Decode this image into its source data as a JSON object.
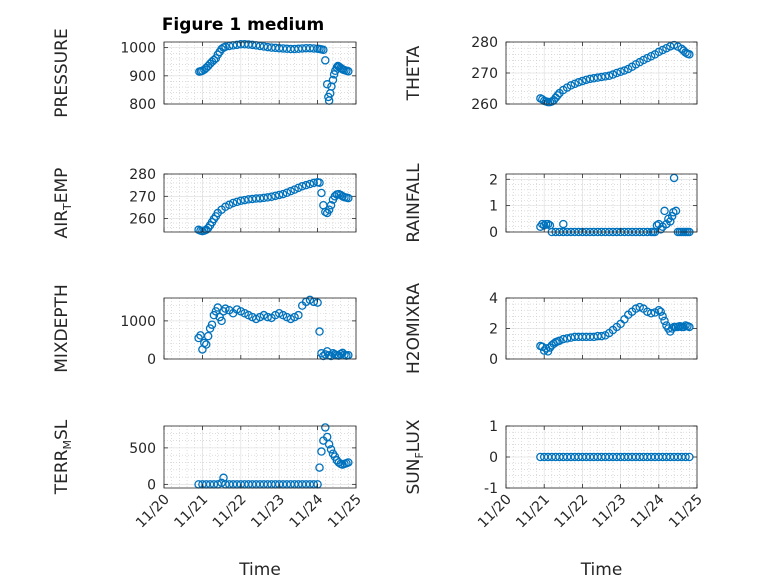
{
  "figure": {
    "title": "Figure 1 medium",
    "marker_color": "#0072BD"
  },
  "chart_data": [
    {
      "type": "scatter",
      "ylabel": "PRESSURE",
      "ylim": [
        800,
        1020
      ],
      "yticks": [
        800,
        900,
        1000
      ],
      "ytick_labels": [
        "800",
        "900",
        "1000"
      ],
      "xlim": [
        "11/20",
        "11/25"
      ],
      "xticks": [
        "11/20",
        "11/21",
        "11/22",
        "11/23",
        "11/24",
        "11/25"
      ],
      "xlabel": "",
      "grid": "on",
      "x": [
        0.92,
        0.96,
        1.0,
        1.05,
        1.1,
        1.15,
        1.2,
        1.25,
        1.3,
        1.35,
        1.4,
        1.45,
        1.5,
        1.55,
        1.6,
        1.7,
        1.8,
        1.9,
        2.0,
        2.1,
        2.2,
        2.3,
        2.4,
        2.5,
        2.6,
        2.7,
        2.8,
        2.9,
        3.0,
        3.1,
        3.2,
        3.3,
        3.4,
        3.5,
        3.6,
        3.7,
        3.8,
        3.9,
        4.0,
        4.05,
        4.1,
        4.15,
        4.2,
        4.25,
        4.28,
        4.3,
        4.33,
        4.36,
        4.4,
        4.43,
        4.46,
        4.5,
        4.53,
        4.56,
        4.6,
        4.63,
        4.66,
        4.7,
        4.75,
        4.8
      ],
      "y": [
        915,
        916,
        918,
        922,
        928,
        935,
        943,
        950,
        956,
        962,
        975,
        985,
        995,
        1000,
        1003,
        1006,
        1008,
        1010,
        1012,
        1012,
        1011,
        1010,
        1008,
        1006,
        1004,
        1002,
        1000,
        999,
        998,
        997,
        996,
        995,
        995,
        996,
        997,
        998,
        998,
        997,
        996,
        995,
        994,
        992,
        955,
        870,
        825,
        812,
        838,
        862,
        885,
        905,
        918,
        930,
        935,
        932,
        928,
        925,
        922,
        920,
        918,
        916
      ]
    },
    {
      "type": "scatter",
      "ylabel": "THETA",
      "ylim": [
        260,
        280
      ],
      "yticks": [
        260,
        270,
        280
      ],
      "ytick_labels": [
        "260",
        "270",
        "280"
      ],
      "xlim": [
        "11/20",
        "11/25"
      ],
      "xticks": [
        "11/20",
        "11/21",
        "11/22",
        "11/23",
        "11/24",
        "11/25"
      ],
      "xlabel": "",
      "grid": "on",
      "x": [
        0.9,
        0.95,
        1.0,
        1.05,
        1.1,
        1.15,
        1.2,
        1.25,
        1.3,
        1.35,
        1.4,
        1.5,
        1.6,
        1.7,
        1.8,
        1.9,
        2.0,
        2.1,
        2.2,
        2.3,
        2.4,
        2.5,
        2.6,
        2.7,
        2.8,
        2.9,
        3.0,
        3.1,
        3.2,
        3.3,
        3.4,
        3.5,
        3.6,
        3.7,
        3.8,
        3.9,
        4.0,
        4.1,
        4.2,
        4.3,
        4.4,
        4.5,
        4.6,
        4.65,
        4.7,
        4.75,
        4.8
      ],
      "y": [
        261.8,
        261.5,
        261.0,
        260.8,
        260.6,
        260.6,
        260.8,
        261.2,
        262.0,
        262.8,
        263.5,
        264.5,
        265.3,
        266.0,
        266.5,
        267.0,
        267.4,
        267.8,
        268.1,
        268.3,
        268.5,
        268.7,
        268.9,
        269.1,
        269.5,
        270.0,
        270.4,
        270.8,
        271.3,
        272.0,
        272.8,
        273.5,
        274.2,
        274.8,
        275.4,
        276.0,
        276.8,
        277.4,
        278.0,
        278.6,
        279.0,
        278.5,
        277.8,
        277.2,
        276.6,
        276.2,
        276.0
      ]
    },
    {
      "type": "scatter",
      "ylabel": "AIR_TEMP",
      "ylabel_main": "AIR",
      "ylabel_sub": "T",
      "ylabel_tail": "EMP",
      "ylim": [
        254,
        280
      ],
      "yticks": [
        260,
        270,
        280
      ],
      "ytick_labels": [
        "260",
        "270",
        "280"
      ],
      "xlim": [
        "11/20",
        "11/25"
      ],
      "xticks": [
        "11/20",
        "11/21",
        "11/22",
        "11/23",
        "11/24",
        "11/25"
      ],
      "xlabel": "",
      "grid": "on",
      "x": [
        0.9,
        0.95,
        1.0,
        1.05,
        1.1,
        1.15,
        1.2,
        1.25,
        1.3,
        1.35,
        1.4,
        1.5,
        1.6,
        1.7,
        1.8,
        1.9,
        2.0,
        2.1,
        2.2,
        2.3,
        2.4,
        2.5,
        2.6,
        2.7,
        2.8,
        2.9,
        3.0,
        3.1,
        3.2,
        3.3,
        3.4,
        3.5,
        3.6,
        3.7,
        3.8,
        3.9,
        4.0,
        4.05,
        4.1,
        4.15,
        4.2,
        4.25,
        4.3,
        4.35,
        4.4,
        4.45,
        4.5,
        4.55,
        4.6,
        4.65,
        4.7,
        4.75,
        4.8
      ],
      "y": [
        255.0,
        254.6,
        254.4,
        254.6,
        255.0,
        255.8,
        257.0,
        258.4,
        259.8,
        261.0,
        262.5,
        264.0,
        265.3,
        266.2,
        267.0,
        267.5,
        268.0,
        268.3,
        268.6,
        268.8,
        269.0,
        269.1,
        269.3,
        269.5,
        269.8,
        270.2,
        270.6,
        271.0,
        271.6,
        272.3,
        273.0,
        273.8,
        274.5,
        275.0,
        275.5,
        276.0,
        276.3,
        276.1,
        271.5,
        266.0,
        263.0,
        262.5,
        264.0,
        266.0,
        268.5,
        270.0,
        270.8,
        271.0,
        270.6,
        270.0,
        269.6,
        269.4,
        269.2
      ]
    },
    {
      "type": "scatter",
      "ylabel": "RAINFALL",
      "ylim": [
        0,
        2.2
      ],
      "yticks": [
        0,
        1,
        2
      ],
      "ytick_labels": [
        "0",
        "1",
        "2"
      ],
      "xlim": [
        "11/20",
        "11/25"
      ],
      "xticks": [
        "11/20",
        "11/21",
        "11/22",
        "11/23",
        "11/24",
        "11/25"
      ],
      "xlabel": "",
      "grid": "on",
      "x": [
        0.9,
        0.95,
        1.0,
        1.05,
        1.1,
        1.15,
        1.2,
        1.3,
        1.4,
        1.5,
        1.5,
        1.6,
        1.7,
        1.8,
        1.9,
        2.0,
        2.1,
        2.2,
        2.3,
        2.4,
        2.5,
        2.6,
        2.7,
        2.8,
        2.9,
        3.0,
        3.1,
        3.2,
        3.3,
        3.4,
        3.5,
        3.6,
        3.7,
        3.8,
        3.85,
        3.9,
        3.95,
        4.0,
        4.05,
        4.1,
        4.15,
        4.2,
        4.25,
        4.3,
        4.35,
        4.38,
        4.4,
        4.45,
        4.5,
        4.55,
        4.6,
        4.65,
        4.7,
        4.75,
        4.8
      ],
      "y": [
        0.2,
        0.3,
        0.25,
        0.3,
        0.3,
        0.25,
        0,
        0,
        0,
        0.3,
        0,
        0,
        0,
        0,
        0,
        0,
        0,
        0,
        0,
        0,
        0,
        0,
        0,
        0,
        0,
        0,
        0,
        0,
        0,
        0,
        0,
        0,
        0,
        0,
        0,
        0,
        0.25,
        0.3,
        0.1,
        0.2,
        0.8,
        0.3,
        0.5,
        0.4,
        0.6,
        0.75,
        2.05,
        0.8,
        0,
        0,
        0,
        0,
        0,
        0,
        0
      ]
    },
    {
      "type": "scatter",
      "ylabel": "MIXDEPTH",
      "ylim": [
        0,
        1600
      ],
      "yticks": [
        0,
        1000
      ],
      "ytick_labels": [
        "0",
        "1000"
      ],
      "xlim": [
        "11/20",
        "11/25"
      ],
      "xticks": [
        "11/20",
        "11/21",
        "11/22",
        "11/23",
        "11/24",
        "11/25"
      ],
      "xlabel": "",
      "grid": "on",
      "x": [
        0.9,
        0.95,
        1.0,
        1.05,
        1.1,
        1.15,
        1.2,
        1.25,
        1.3,
        1.35,
        1.4,
        1.45,
        1.5,
        1.55,
        1.6,
        1.7,
        1.8,
        1.9,
        2.0,
        2.1,
        2.2,
        2.3,
        2.4,
        2.5,
        2.6,
        2.7,
        2.8,
        2.9,
        3.0,
        3.1,
        3.2,
        3.3,
        3.4,
        3.5,
        3.6,
        3.7,
        3.8,
        3.9,
        4.0,
        4.05,
        4.1,
        4.15,
        4.2,
        4.25,
        4.3,
        4.35,
        4.4,
        4.45,
        4.5,
        4.55,
        4.6,
        4.65,
        4.7,
        4.75,
        4.8
      ],
      "y": [
        550,
        620,
        250,
        420,
        380,
        600,
        800,
        900,
        1150,
        1250,
        1350,
        1100,
        1000,
        1250,
        1320,
        1280,
        1200,
        1300,
        1250,
        1200,
        1150,
        1100,
        1050,
        1100,
        1150,
        1100,
        1080,
        1150,
        1200,
        1150,
        1100,
        1050,
        1100,
        1150,
        1400,
        1500,
        1550,
        1500,
        1480,
        720,
        150,
        80,
        120,
        200,
        100,
        80,
        150,
        120,
        100,
        90,
        130,
        160,
        110,
        90,
        100
      ]
    },
    {
      "type": "scatter",
      "ylabel": "H2OMIXRA",
      "ylim": [
        0,
        4
      ],
      "yticks": [
        0,
        2,
        4
      ],
      "ytick_labels": [
        "0",
        "2",
        "4"
      ],
      "xlim": [
        "11/20",
        "11/25"
      ],
      "xticks": [
        "11/20",
        "11/21",
        "11/22",
        "11/23",
        "11/24",
        "11/25"
      ],
      "xlabel": "",
      "grid": "on",
      "x": [
        0.9,
        0.95,
        1.0,
        1.05,
        1.1,
        1.15,
        1.2,
        1.25,
        1.3,
        1.35,
        1.4,
        1.5,
        1.6,
        1.7,
        1.8,
        1.9,
        2.0,
        2.1,
        2.2,
        2.3,
        2.4,
        2.5,
        2.6,
        2.7,
        2.8,
        2.9,
        3.0,
        3.1,
        3.2,
        3.3,
        3.4,
        3.5,
        3.6,
        3.7,
        3.8,
        3.9,
        4.0,
        4.05,
        4.1,
        4.15,
        4.2,
        4.25,
        4.3,
        4.35,
        4.4,
        4.45,
        4.5,
        4.55,
        4.6,
        4.65,
        4.7,
        4.75,
        4.8
      ],
      "y": [
        0.85,
        0.8,
        0.55,
        0.7,
        0.5,
        0.75,
        0.9,
        1.0,
        1.1,
        1.15,
        1.2,
        1.3,
        1.35,
        1.4,
        1.45,
        1.45,
        1.45,
        1.45,
        1.45,
        1.45,
        1.5,
        1.5,
        1.55,
        1.7,
        1.9,
        2.1,
        2.3,
        2.6,
        2.9,
        3.1,
        3.3,
        3.4,
        3.3,
        3.1,
        3.0,
        3.05,
        3.2,
        3.1,
        2.8,
        2.5,
        2.2,
        2.0,
        1.8,
        2.0,
        2.1,
        2.1,
        2.1,
        2.15,
        2.1,
        2.1,
        2.2,
        2.15,
        2.1
      ]
    },
    {
      "type": "scatter",
      "ylabel": "TERR_MSL",
      "ylabel_main": "TERR",
      "ylabel_sub": "M",
      "ylabel_tail": "SL",
      "ylim": [
        -50,
        800
      ],
      "yticks": [
        0,
        500
      ],
      "ytick_labels": [
        "0",
        "500"
      ],
      "xlim": [
        "11/20",
        "11/25"
      ],
      "xticks": [
        "11/20",
        "11/21",
        "11/22",
        "11/23",
        "11/24",
        "11/25"
      ],
      "xticklabels_shown": true,
      "xlabel": "Time",
      "grid": "on",
      "x": [
        0.9,
        1.0,
        1.1,
        1.2,
        1.3,
        1.4,
        1.5,
        1.55,
        1.6,
        1.7,
        1.8,
        1.9,
        2.0,
        2.1,
        2.2,
        2.3,
        2.4,
        2.5,
        2.6,
        2.7,
        2.8,
        2.9,
        3.0,
        3.1,
        3.2,
        3.3,
        3.4,
        3.5,
        3.6,
        3.7,
        3.8,
        3.9,
        4.0,
        4.05,
        4.1,
        4.15,
        4.2,
        4.25,
        4.3,
        4.35,
        4.4,
        4.45,
        4.5,
        4.55,
        4.6,
        4.65,
        4.7,
        4.75,
        4.8
      ],
      "y": [
        0,
        0,
        0,
        0,
        0,
        0,
        20,
        90,
        0,
        0,
        0,
        0,
        0,
        0,
        0,
        0,
        0,
        0,
        0,
        0,
        0,
        0,
        0,
        0,
        0,
        0,
        0,
        0,
        0,
        0,
        0,
        0,
        0,
        230,
        450,
        600,
        780,
        650,
        550,
        480,
        420,
        380,
        330,
        300,
        280,
        270,
        280,
        290,
        300
      ]
    },
    {
      "type": "scatter",
      "ylabel": "SUN_FLUX",
      "ylabel_main": "SUN",
      "ylabel_sub": "F",
      "ylabel_tail": "LUX",
      "ylim": [
        -1,
        1
      ],
      "yticks": [
        -1,
        0,
        1
      ],
      "ytick_labels": [
        "-1",
        "0",
        "1"
      ],
      "xlim": [
        "11/20",
        "11/25"
      ],
      "xticks": [
        "11/20",
        "11/21",
        "11/22",
        "11/23",
        "11/24",
        "11/25"
      ],
      "xlabel": "Time",
      "grid": "on",
      "x": [
        0.9,
        1.0,
        1.1,
        1.2,
        1.3,
        1.4,
        1.5,
        1.6,
        1.7,
        1.8,
        1.9,
        2.0,
        2.1,
        2.2,
        2.3,
        2.4,
        2.5,
        2.6,
        2.7,
        2.8,
        2.9,
        3.0,
        3.1,
        3.2,
        3.3,
        3.4,
        3.5,
        3.6,
        3.7,
        3.8,
        3.9,
        4.0,
        4.1,
        4.2,
        4.3,
        4.4,
        4.5,
        4.6,
        4.7,
        4.8
      ],
      "y": [
        0,
        0,
        0,
        0,
        0,
        0,
        0,
        0,
        0,
        0,
        0,
        0,
        0,
        0,
        0,
        0,
        0,
        0,
        0,
        0,
        0,
        0,
        0,
        0,
        0,
        0,
        0,
        0,
        0,
        0,
        0,
        0,
        0,
        0,
        0,
        0,
        0,
        0,
        0,
        0
      ]
    }
  ]
}
